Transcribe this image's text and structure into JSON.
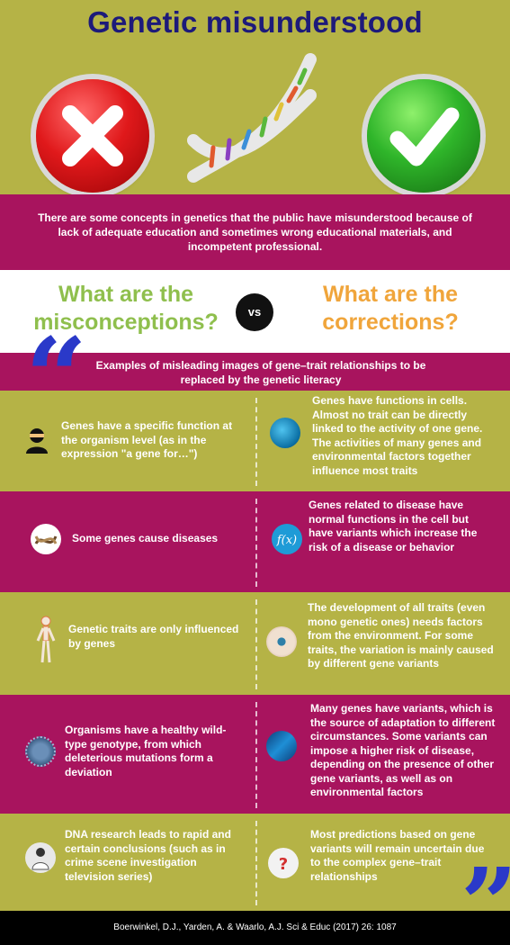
{
  "title": "Genetic misunderstood",
  "intro": "There are some concepts in genetics that  the public have  misunderstood because of lack of adequate education and sometimes wrong educational materials, and incompetent professional.",
  "headings": {
    "misconceptions": "What are the misconceptions?",
    "vs": "vs",
    "corrections": "What are the corrections?"
  },
  "examples_banner": "Examples of misleading images of gene–trait relationships to be replaced by the genetic literacy",
  "rows": [
    {
      "misconception": "Genes have a specific function at the organism level (as in the expression \"a gene for…\")",
      "misconception_icon": "person-avatar-icon",
      "correction": "Genes have functions in cells. Almost no trait can be directly linked to the activity of one gene. The activities of many genes and environmental factors together influence most traits",
      "correction_icon": "cell-icon"
    },
    {
      "misconception": "Some genes cause diseases",
      "misconception_icon": "dna-strand-icon",
      "correction": "Genes related to disease have normal functions in the cell but have variants which increase the risk of a disease or behavior",
      "correction_icon": "function-icon"
    },
    {
      "misconception": "Genetic traits are only influenced by genes",
      "misconception_icon": "skeleton-icon",
      "correction": "The development of all traits (even mono genetic ones) needs factors from the environment. For some traits, the variation is mainly caused by different gene variants",
      "correction_icon": "eye-icon"
    },
    {
      "misconception": "Organisms have a healthy wild-type genotype, from which deleterious mutations form a deviation",
      "misconception_icon": "virus-icon",
      "correction": "Many genes have variants, which is the source of adaptation to different circumstances. Some variants can impose a higher risk of disease, depending on the presence of other gene variants, as well as on environmental factors",
      "correction_icon": "dna-helix-icon"
    },
    {
      "misconception": "DNA research leads to rapid and certain conclusions (such as in crime scene investigation television series)",
      "misconception_icon": "scientist-icon",
      "correction": "Most predictions based on gene variants will remain uncertain due to the complex gene–trait relationships",
      "correction_icon": "question-mark-icon"
    }
  ],
  "footer": "Boerwinkel, D.J., Yarden, A. & Waarlo, A.J. Sci & Educ (2017) 26: 1087",
  "colors": {
    "olive": "#b5b346",
    "magenta": "#a8145e",
    "title": "#1d1a7a",
    "misconceptions": "#8fbf4d",
    "corrections": "#f0a53b",
    "quote": "#2a39c9"
  }
}
